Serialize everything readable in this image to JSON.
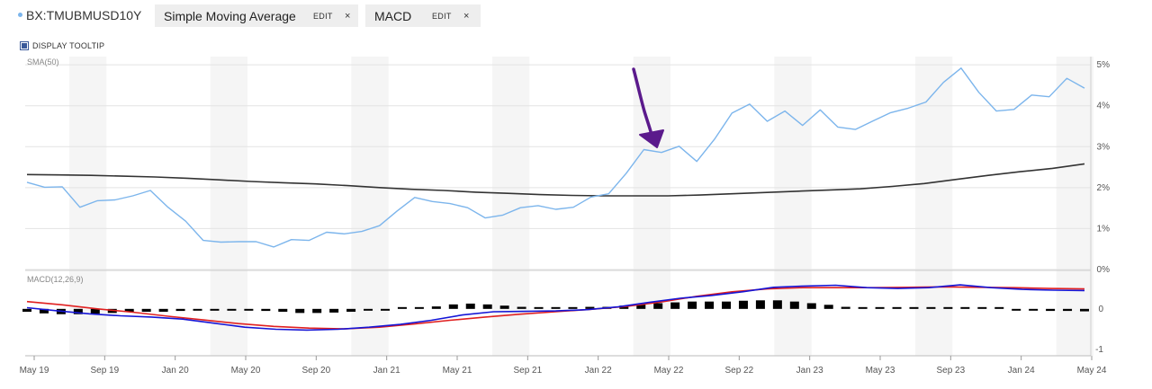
{
  "header": {
    "symbol": "BX:TMUBMUSD10Y",
    "tabs": [
      {
        "name": "Simple Moving Average",
        "edit": "EDIT",
        "close": "×"
      },
      {
        "name": "MACD",
        "edit": "EDIT",
        "close": "×"
      }
    ],
    "tooltip_toggle": "DISPLAY TOOLTIP"
  },
  "chart_data": [
    {
      "type": "line",
      "panel_label": "SMA(50)",
      "x_tick_labels": [
        "May 19",
        "Sep 19",
        "Jan 20",
        "May 20",
        "Sep 20",
        "Jan 21",
        "May 21",
        "Sep 21",
        "Jan 22",
        "May 22",
        "Sep 22",
        "Jan 23",
        "May 23",
        "Sep 23",
        "Jan 24",
        "May 24"
      ],
      "y_tick_labels": [
        "5%",
        "4%",
        "3%",
        "2%",
        "1%",
        "0%"
      ],
      "ylim": [
        0,
        5.2
      ],
      "series": [
        {
          "color": "#7cb5ec",
          "values": [
            2.13,
            2.01,
            2.02,
            1.52,
            1.68,
            1.7,
            1.8,
            1.93,
            1.52,
            1.18,
            0.71,
            0.67,
            0.68,
            0.68,
            0.55,
            0.73,
            0.71,
            0.91,
            0.87,
            0.93,
            1.07,
            1.43,
            1.76,
            1.66,
            1.61,
            1.51,
            1.26,
            1.33,
            1.51,
            1.56,
            1.47,
            1.52,
            1.77,
            1.85,
            2.35,
            2.93,
            2.86,
            3.01,
            2.64,
            3.18,
            3.82,
            4.04,
            3.62,
            3.87,
            3.52,
            3.9,
            3.48,
            3.42,
            3.63,
            3.83,
            3.94,
            4.09,
            4.57,
            4.92,
            4.33,
            3.87,
            3.91,
            4.26,
            4.22,
            4.67,
            4.43
          ]
        },
        {
          "color": "#333333",
          "values": [
            2.32,
            2.31,
            2.3,
            2.28,
            2.26,
            2.23,
            2.19,
            2.15,
            2.12,
            2.09,
            2.05,
            2.0,
            1.96,
            1.93,
            1.89,
            1.86,
            1.83,
            1.81,
            1.8,
            1.8,
            1.8,
            1.82,
            1.85,
            1.88,
            1.91,
            1.94,
            1.97,
            2.03,
            2.1,
            2.2,
            2.3,
            2.39,
            2.47,
            2.58
          ]
        }
      ],
      "annotation": {
        "type": "arrow",
        "color": "#5b1a8c"
      }
    },
    {
      "type": "line",
      "panel_label": "MACD(12,26,9)",
      "y_tick_labels": [
        "0",
        "-1"
      ],
      "ylim": [
        -1.15,
        0.9
      ],
      "series": [
        {
          "color": "#1515d6",
          "values": [
            0.03,
            -0.05,
            -0.12,
            -0.17,
            -0.2,
            -0.25,
            -0.35,
            -0.45,
            -0.5,
            -0.52,
            -0.5,
            -0.45,
            -0.38,
            -0.28,
            -0.15,
            -0.07,
            -0.06,
            -0.05,
            -0.02,
            0.05,
            0.16,
            0.26,
            0.33,
            0.42,
            0.53,
            0.56,
            0.58,
            0.52,
            0.5,
            0.52,
            0.59,
            0.52,
            0.48,
            0.46,
            0.45
          ]
        },
        {
          "color": "#e02020",
          "values": [
            0.18,
            0.1,
            0.0,
            -0.08,
            -0.18,
            -0.27,
            -0.36,
            -0.43,
            -0.47,
            -0.49,
            -0.45,
            -0.37,
            -0.28,
            -0.2,
            -0.13,
            -0.07,
            -0.01,
            0.06,
            0.17,
            0.31,
            0.42,
            0.49,
            0.52,
            0.52,
            0.52,
            0.53,
            0.54,
            0.53,
            0.52,
            0.5,
            0.49
          ]
        },
        {
          "type": "bar",
          "color": "#000000",
          "values": [
            -0.07,
            -0.11,
            -0.13,
            -0.13,
            -0.12,
            -0.1,
            -0.08,
            -0.07,
            -0.07,
            -0.05,
            -0.02,
            -0.02,
            -0.01,
            -0.04,
            -0.05,
            -0.07,
            -0.1,
            -0.1,
            -0.09,
            -0.07,
            -0.04,
            -0.01,
            0.0,
            0.03,
            0.06,
            0.11,
            0.13,
            0.11,
            0.08,
            0.05,
            0.04,
            0.01,
            0.02,
            0.05,
            0.05,
            0.08,
            0.11,
            0.14,
            0.16,
            0.18,
            0.18,
            0.18,
            0.2,
            0.21,
            0.21,
            0.18,
            0.14,
            0.1,
            0.05,
            0.03,
            0.01,
            0.01,
            0.02,
            0.02,
            0.03,
            0.03,
            0.03,
            0.0,
            -0.03,
            -0.04,
            -0.05,
            -0.05,
            -0.06
          ]
        }
      ]
    }
  ]
}
